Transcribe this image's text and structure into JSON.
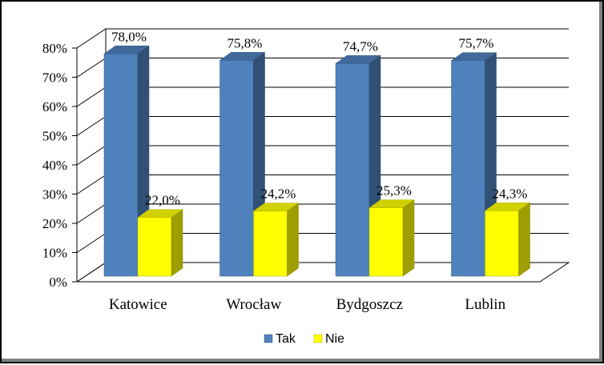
{
  "chart_data": {
    "type": "bar",
    "categories": [
      "Katowice",
      "Wrocław",
      "Bydgoszcz",
      "Lublin"
    ],
    "series": [
      {
        "name": "Tak",
        "values": [
          78.0,
          75.8,
          74.7,
          75.7
        ],
        "labels": [
          "78,0%",
          "75,8%",
          "74,7%",
          "75,7%"
        ],
        "color": "#4f81bd"
      },
      {
        "name": "Nie",
        "values": [
          22.0,
          24.2,
          25.3,
          24.3
        ],
        "labels": [
          "22,0%",
          "24,2%",
          "25,3%",
          "24,3%"
        ],
        "color": "#ffff00"
      }
    ],
    "y_ticks": [
      "0%",
      "10%",
      "20%",
      "30%",
      "40%",
      "50%",
      "60%",
      "70%",
      "80%"
    ],
    "ylim": [
      0,
      80
    ],
    "grid": true,
    "style": "3d-clustered",
    "legend_position": "bottom"
  }
}
